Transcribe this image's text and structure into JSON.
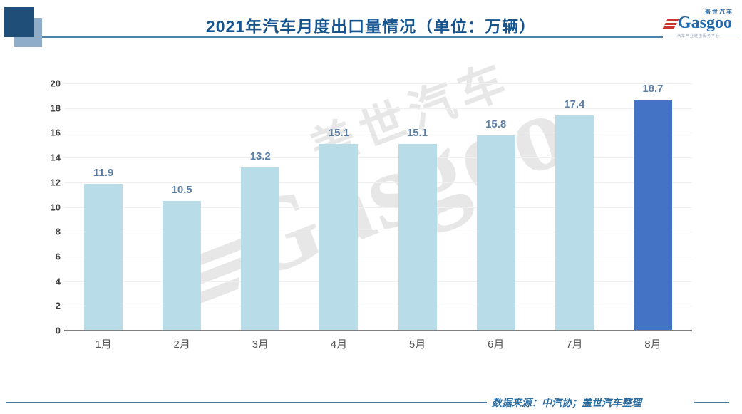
{
  "header": {
    "title": "2021年汽车月度出口量情况（单位：万辆）",
    "logo": {
      "brand": "Gasgoo",
      "brand_cn": "盖世汽车",
      "tagline": "汽车产业链接服务平台"
    }
  },
  "chart_data": {
    "type": "bar",
    "title": "2021年汽车月度出口量情况（单位：万辆）",
    "categories": [
      "1月",
      "2月",
      "3月",
      "4月",
      "5月",
      "6月",
      "7月",
      "8月"
    ],
    "values": [
      11.9,
      10.5,
      13.2,
      15.1,
      15.1,
      15.8,
      17.4,
      18.7
    ],
    "xlabel": "",
    "ylabel": "",
    "unit": "万辆",
    "ylim": [
      0,
      20
    ],
    "yticks": [
      0,
      2,
      4,
      6,
      8,
      10,
      12,
      14,
      16,
      18,
      20
    ],
    "grid": true,
    "legend": false,
    "bar_color": "#B8DCE8",
    "highlight_color": "#4472C4",
    "highlight_index": 7,
    "value_label_color": "#5B7FA6"
  },
  "watermark": {
    "text_cn": "盖世汽车",
    "text_en": "Gasgoo"
  },
  "footer": {
    "source": "数据来源：中汽协；盖世汽车整理"
  },
  "colors": {
    "title_blue": "#15548E",
    "rule_blue": "#4C84AC",
    "dark_square": "#1F4E79",
    "light_square": "#8FACC9",
    "logo_blue": "#2268A8",
    "logo_red": "#C8372D",
    "footer_blue": "#2C6DA0",
    "gridline": "#F0F0F0",
    "axis_line": "#7F7F7F",
    "y_tick_text": "#3F3F3F",
    "x_tick_text": "#595959",
    "watermark_gray": "#E7E7E7"
  }
}
